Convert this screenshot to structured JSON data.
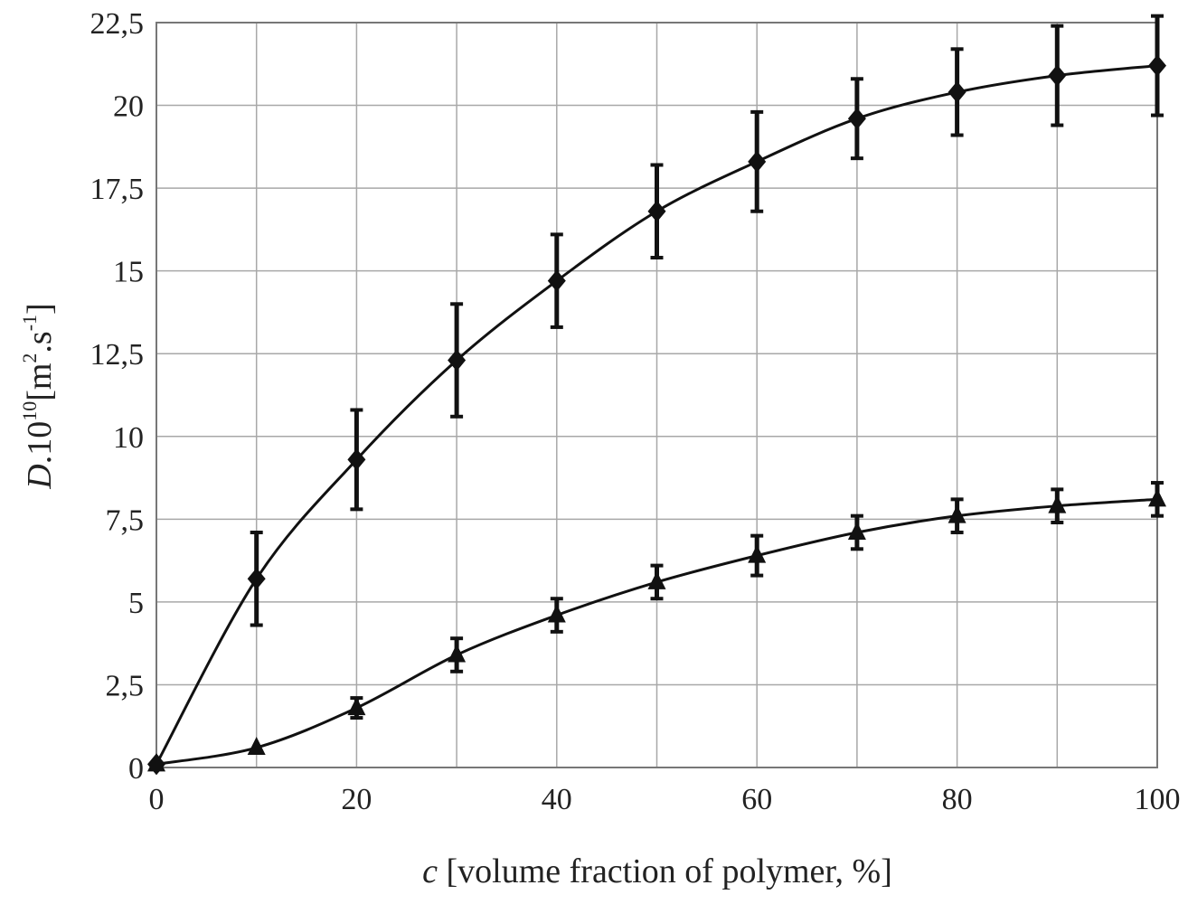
{
  "chart_data": {
    "type": "line",
    "xlabel": {
      "var": "c",
      "rest": " [volume fraction of polymer, %]"
    },
    "ylabel": {
      "var": "D",
      "pre": ".10",
      "exp10": "10",
      "mid": "[m",
      "exp2": "2",
      "dot": ".s",
      "expm1": "-1",
      "close": "]"
    },
    "xlim": [
      0,
      100
    ],
    "ylim": [
      0,
      22.5
    ],
    "x_ticks": [
      0,
      10,
      20,
      30,
      40,
      50,
      60,
      70,
      80,
      90,
      100
    ],
    "x_tick_labels": [
      "0",
      "20",
      "40",
      "60",
      "80",
      "100"
    ],
    "x_tick_label_values": [
      0,
      20,
      40,
      60,
      80,
      100
    ],
    "y_ticks": [
      0,
      2.5,
      5,
      7.5,
      10,
      12.5,
      15,
      17.5,
      20,
      22.5
    ],
    "y_tick_labels": [
      "0",
      "2,5",
      "5",
      "7,5",
      "10",
      "12,5",
      "15",
      "17,5",
      "20",
      "22,5"
    ],
    "grid": true,
    "series": [
      {
        "marker": "diamond",
        "x": [
          0,
          10,
          20,
          30,
          40,
          50,
          60,
          70,
          80,
          90,
          100
        ],
        "y": [
          0.1,
          5.7,
          9.3,
          12.3,
          14.7,
          16.8,
          18.3,
          19.6,
          20.4,
          20.9,
          21.2
        ],
        "err": [
          0,
          1.4,
          1.5,
          1.7,
          1.4,
          1.4,
          1.5,
          1.2,
          1.3,
          1.5,
          1.5
        ]
      },
      {
        "marker": "triangle",
        "x": [
          0,
          10,
          20,
          30,
          40,
          50,
          60,
          70,
          80,
          90,
          100
        ],
        "y": [
          0.1,
          0.6,
          1.8,
          3.4,
          4.6,
          5.6,
          6.4,
          7.1,
          7.6,
          7.9,
          8.1
        ],
        "err": [
          0,
          0,
          0.3,
          0.5,
          0.5,
          0.5,
          0.6,
          0.5,
          0.5,
          0.5,
          0.5
        ]
      }
    ]
  }
}
